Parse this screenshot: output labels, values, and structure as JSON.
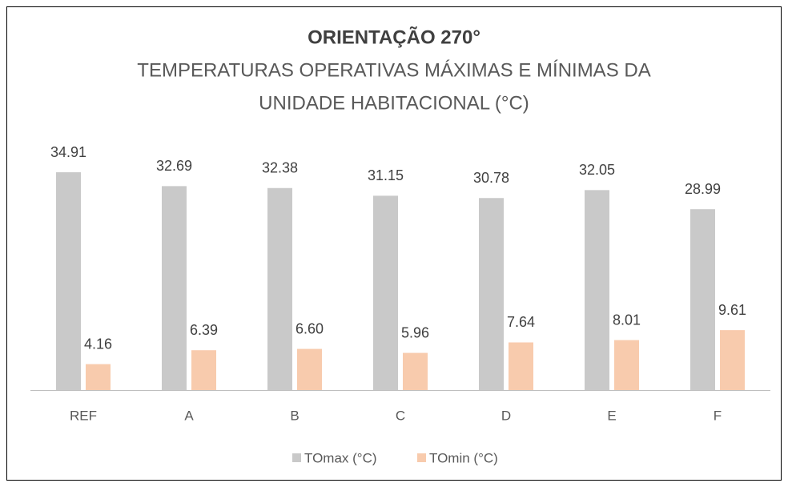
{
  "chart_data": {
    "type": "bar",
    "title": "ORIENTAÇÃO 270°",
    "subtitle": [
      "TEMPERATURAS OPERATIVAS MÁXIMAS E MÍNIMAS DA",
      "UNIDADE HABITACIONAL (°C)"
    ],
    "categories": [
      "REF",
      "A",
      "B",
      "C",
      "D",
      "E",
      "F"
    ],
    "series": [
      {
        "name": "TOmax (°C)",
        "color": "#c9c9c9",
        "values": [
          34.91,
          32.69,
          32.38,
          31.15,
          30.78,
          32.05,
          28.99
        ],
        "value_labels": [
          "34.91",
          "32.69",
          "32.38",
          "31.15",
          "30.78",
          "32.05",
          "28.99"
        ]
      },
      {
        "name": "TOmin (°C)",
        "color": "#f8cbad",
        "values": [
          4.16,
          6.39,
          6.6,
          5.96,
          7.64,
          8.01,
          9.61
        ],
        "value_labels": [
          "4.16",
          "6.39",
          "6.60",
          "5.96",
          "7.64",
          "8.01",
          "9.61"
        ]
      }
    ]
  }
}
